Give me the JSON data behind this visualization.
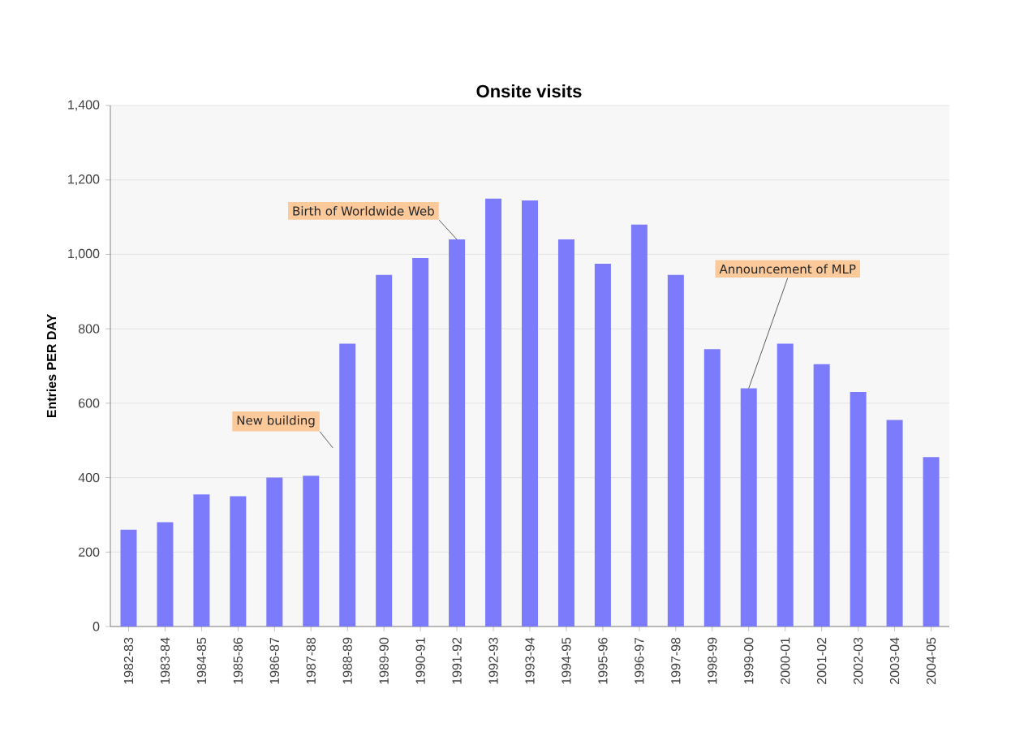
{
  "chart_data": {
    "type": "bar",
    "title": "Onsite visits",
    "ylabel": "Entries PER DAY",
    "categories": [
      "1982-83",
      "1983-84",
      "1984-85",
      "1985-86",
      "1986-87",
      "1987-88",
      "1988-89",
      "1989-90",
      "1990-91",
      "1991-92",
      "1992-93",
      "1993-94",
      "1994-95",
      "1995-96",
      "1996-97",
      "1997-98",
      "1998-99",
      "1999-00",
      "2000-01",
      "2001-02",
      "2002-03",
      "2003-04",
      "2004-05"
    ],
    "values": [
      260,
      280,
      355,
      350,
      400,
      405,
      760,
      945,
      990,
      1040,
      1150,
      1145,
      1040,
      975,
      1080,
      945,
      745,
      640,
      760,
      705,
      630,
      555,
      455
    ],
    "color": "#7b7bfb",
    "ylim": [
      0,
      1400
    ],
    "yticks": [
      0,
      200,
      400,
      600,
      800,
      {
        "value": 1000,
        "label": "1,000"
      },
      {
        "value": 1200,
        "label": "1,200"
      },
      {
        "value": 1400,
        "label": "1,400"
      }
    ],
    "grid": "y",
    "annotations": [
      "New building",
      {
        "text": "Birth of Worldwide Web",
        "x": "1991-92",
        "y": 1040
      },
      {
        "text": "Announcement of MLP",
        "x": "1999-00",
        "y": 640
      }
    ]
  }
}
